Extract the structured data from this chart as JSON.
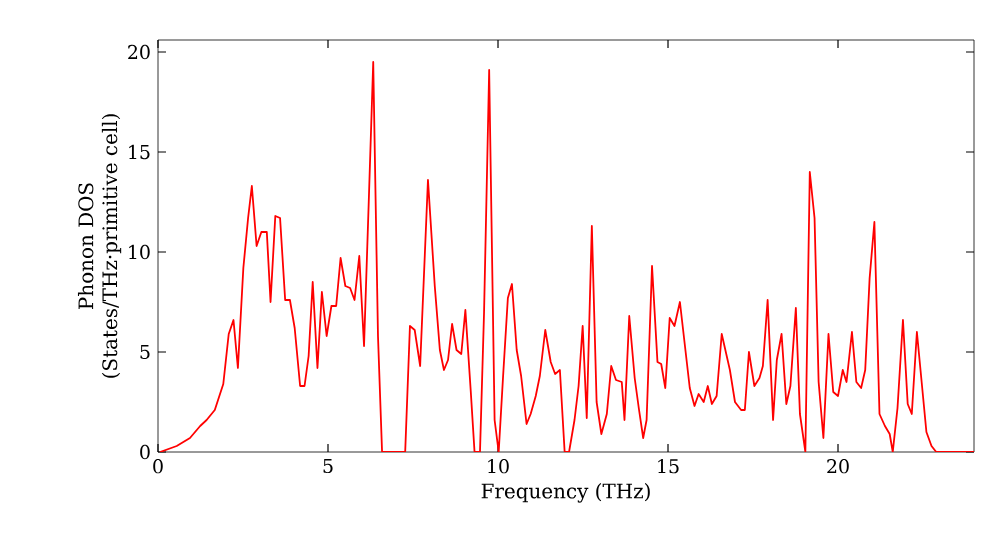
{
  "chart_data": {
    "type": "line",
    "xlabel": "Frequency (THz)",
    "ylabel": "Phonon DOS\n(States/THz·primitive cell)",
    "x": [
      0.06,
      0.55,
      0.94,
      1.24,
      1.43,
      1.67,
      1.92,
      2.08,
      2.22,
      2.35,
      2.51,
      2.65,
      2.76,
      2.9,
      3.04,
      3.2,
      3.31,
      3.45,
      3.59,
      3.74,
      3.88,
      4.02,
      4.18,
      4.31,
      4.43,
      4.55,
      4.69,
      4.82,
      4.96,
      5.1,
      5.24,
      5.37,
      5.51,
      5.65,
      5.78,
      5.92,
      6.06,
      6.2,
      6.33,
      6.47,
      6.59,
      6.82,
      7.27,
      7.41,
      7.55,
      7.71,
      7.94,
      8.14,
      8.29,
      8.41,
      8.53,
      8.65,
      8.78,
      8.92,
      9.04,
      9.2,
      9.31,
      9.47,
      9.59,
      9.74,
      9.9,
      10.02,
      10.15,
      10.29,
      10.41,
      10.55,
      10.68,
      10.84,
      10.96,
      11.11,
      11.23,
      11.39,
      11.55,
      11.68,
      11.82,
      11.96,
      12.09,
      12.25,
      12.37,
      12.49,
      12.61,
      12.76,
      12.9,
      13.04,
      13.2,
      13.33,
      13.47,
      13.64,
      13.72,
      13.86,
      14.02,
      14.14,
      14.27,
      14.37,
      14.53,
      14.69,
      14.8,
      14.92,
      15.05,
      15.19,
      15.35,
      15.64,
      15.78,
      15.9,
      16.05,
      16.17,
      16.29,
      16.43,
      16.58,
      16.82,
      16.97,
      17.15,
      17.26,
      17.38,
      17.54,
      17.69,
      17.79,
      17.93,
      18.09,
      18.2,
      18.34,
      18.48,
      18.6,
      18.76,
      18.88,
      19.04,
      19.17,
      19.31,
      19.43,
      19.57,
      19.72,
      19.86,
      20.0,
      20.14,
      20.25,
      20.41,
      20.54,
      20.68,
      20.8,
      20.93,
      21.07,
      21.22,
      21.38,
      21.52,
      21.61,
      21.75,
      21.91,
      22.05,
      22.17,
      22.32,
      22.46,
      22.6,
      22.75,
      22.89,
      24.0
    ],
    "series": [
      {
        "color": "#ff0000",
        "values": [
          0,
          0.3,
          0.7,
          1.3,
          1.6,
          2.1,
          3.4,
          5.9,
          6.6,
          4.2,
          9.2,
          11.7,
          13.3,
          10.3,
          11.0,
          11.0,
          7.5,
          11.8,
          11.7,
          7.6,
          7.6,
          6.2,
          3.3,
          3.3,
          4.8,
          8.5,
          4.2,
          8.0,
          5.8,
          7.3,
          7.3,
          9.7,
          8.3,
          8.2,
          7.6,
          9.8,
          5.3,
          12.6,
          19.5,
          5.8,
          0,
          0,
          0,
          6.3,
          6.1,
          4.3,
          13.6,
          8.3,
          5.1,
          4.1,
          4.6,
          6.4,
          5.1,
          4.9,
          7.1,
          3.0,
          0,
          0,
          7.0,
          19.1,
          1.6,
          0,
          3.8,
          7.7,
          8.4,
          5.1,
          3.8,
          1.4,
          1.9,
          2.8,
          3.8,
          6.1,
          4.5,
          3.9,
          4.1,
          0,
          0,
          1.6,
          3.3,
          6.3,
          1.7,
          11.3,
          2.5,
          0.9,
          1.9,
          4.3,
          3.6,
          3.5,
          1.6,
          6.8,
          3.7,
          2.2,
          0.7,
          1.6,
          9.3,
          4.5,
          4.4,
          3.2,
          6.7,
          6.3,
          7.5,
          3.2,
          2.3,
          2.9,
          2.5,
          3.3,
          2.4,
          2.8,
          5.9,
          4.1,
          2.5,
          2.1,
          2.1,
          5.0,
          3.3,
          3.7,
          4.3,
          7.6,
          1.6,
          4.6,
          5.9,
          2.4,
          3.3,
          7.2,
          1.9,
          0,
          14.0,
          11.7,
          3.5,
          0.7,
          5.9,
          3.0,
          2.8,
          4.1,
          3.5,
          6.0,
          3.5,
          3.2,
          4.1,
          8.7,
          11.5,
          1.9,
          1.3,
          0.9,
          0,
          2.2,
          6.6,
          2.4,
          1.9,
          6.0,
          3.5,
          1.0,
          0.3,
          0,
          0
        ]
      }
    ],
    "xlim": [
      0,
      24
    ],
    "ylim": [
      0,
      20.6
    ],
    "xticks": [
      0,
      5,
      10,
      15,
      20
    ],
    "yticks": [
      0,
      5,
      10,
      15,
      20
    ],
    "grid": false,
    "marker": "none",
    "line_style": "solid"
  }
}
